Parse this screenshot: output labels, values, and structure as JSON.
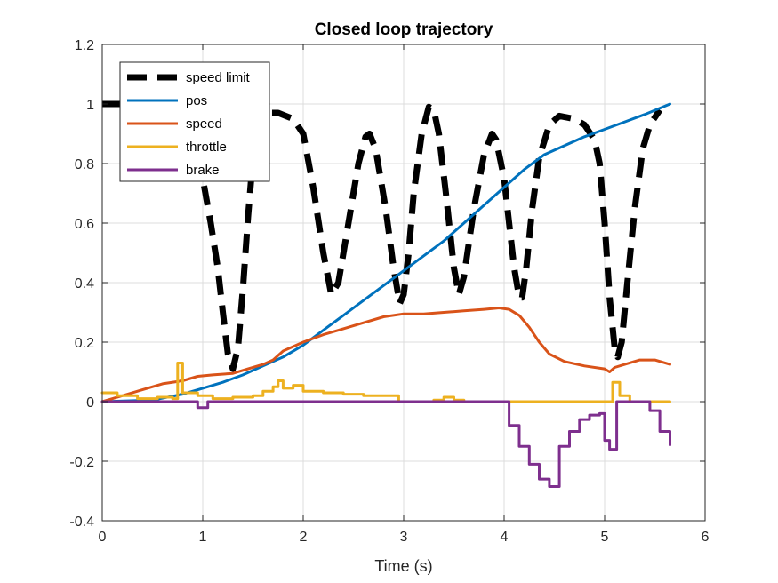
{
  "chart_data": {
    "type": "line",
    "title": "Closed loop trajectory",
    "xlabel": "Time (s)",
    "ylabel": "",
    "xlim": [
      0,
      6
    ],
    "ylim": [
      -0.4,
      1.2
    ],
    "xticks": [
      0,
      1,
      2,
      3,
      4,
      5,
      6
    ],
    "yticks": [
      -0.4,
      -0.2,
      0,
      0.2,
      0.4,
      0.6,
      0.8,
      1,
      1.2
    ],
    "grid": true,
    "legend_position": "top-left",
    "series": [
      {
        "name": "speed limit",
        "color": "#000000",
        "style": "dashed",
        "step": false,
        "points": [
          [
            0.0,
            1.0
          ],
          [
            0.2,
            1.0
          ],
          [
            0.45,
            0.99
          ],
          [
            0.65,
            0.97
          ],
          [
            0.8,
            0.93
          ],
          [
            0.9,
            0.88
          ],
          [
            1.0,
            0.75
          ],
          [
            1.08,
            0.6
          ],
          [
            1.15,
            0.45
          ],
          [
            1.2,
            0.3
          ],
          [
            1.25,
            0.16
          ],
          [
            1.3,
            0.11
          ],
          [
            1.35,
            0.18
          ],
          [
            1.4,
            0.38
          ],
          [
            1.45,
            0.62
          ],
          [
            1.5,
            0.82
          ],
          [
            1.55,
            0.93
          ],
          [
            1.6,
            0.97
          ],
          [
            1.75,
            0.97
          ],
          [
            1.9,
            0.95
          ],
          [
            2.0,
            0.9
          ],
          [
            2.1,
            0.72
          ],
          [
            2.2,
            0.5
          ],
          [
            2.28,
            0.36
          ],
          [
            2.35,
            0.4
          ],
          [
            2.45,
            0.6
          ],
          [
            2.55,
            0.8
          ],
          [
            2.62,
            0.89
          ],
          [
            2.66,
            0.9
          ],
          [
            2.72,
            0.85
          ],
          [
            2.82,
            0.65
          ],
          [
            2.9,
            0.45
          ],
          [
            2.96,
            0.33
          ],
          [
            3.0,
            0.36
          ],
          [
            3.05,
            0.5
          ],
          [
            3.1,
            0.7
          ],
          [
            3.18,
            0.9
          ],
          [
            3.25,
            0.99
          ],
          [
            3.3,
            0.98
          ],
          [
            3.35,
            0.9
          ],
          [
            3.42,
            0.7
          ],
          [
            3.5,
            0.45
          ],
          [
            3.55,
            0.36
          ],
          [
            3.6,
            0.42
          ],
          [
            3.7,
            0.65
          ],
          [
            3.8,
            0.83
          ],
          [
            3.88,
            0.9
          ],
          [
            3.92,
            0.88
          ],
          [
            4.0,
            0.75
          ],
          [
            4.05,
            0.6
          ],
          [
            4.1,
            0.45
          ],
          [
            4.15,
            0.35
          ],
          [
            4.18,
            0.35
          ],
          [
            4.22,
            0.45
          ],
          [
            4.28,
            0.65
          ],
          [
            4.35,
            0.82
          ],
          [
            4.45,
            0.93
          ],
          [
            4.55,
            0.96
          ],
          [
            4.7,
            0.95
          ],
          [
            4.8,
            0.93
          ],
          [
            4.9,
            0.88
          ],
          [
            4.95,
            0.8
          ],
          [
            5.0,
            0.6
          ],
          [
            5.05,
            0.35
          ],
          [
            5.1,
            0.18
          ],
          [
            5.13,
            0.15
          ],
          [
            5.17,
            0.2
          ],
          [
            5.22,
            0.38
          ],
          [
            5.3,
            0.65
          ],
          [
            5.38,
            0.85
          ],
          [
            5.45,
            0.93
          ],
          [
            5.55,
            0.98
          ]
        ]
      },
      {
        "name": "pos",
        "color": "#0072BD",
        "style": "solid",
        "step": false,
        "points": [
          [
            0.0,
            0.0
          ],
          [
            0.5,
            0.005
          ],
          [
            0.8,
            0.025
          ],
          [
            1.0,
            0.045
          ],
          [
            1.2,
            0.065
          ],
          [
            1.4,
            0.09
          ],
          [
            1.6,
            0.12
          ],
          [
            1.8,
            0.15
          ],
          [
            2.0,
            0.19
          ],
          [
            2.2,
            0.24
          ],
          [
            2.4,
            0.29
          ],
          [
            2.6,
            0.34
          ],
          [
            2.8,
            0.39
          ],
          [
            3.0,
            0.44
          ],
          [
            3.2,
            0.49
          ],
          [
            3.4,
            0.54
          ],
          [
            3.6,
            0.6
          ],
          [
            3.8,
            0.66
          ],
          [
            4.0,
            0.72
          ],
          [
            4.2,
            0.78
          ],
          [
            4.4,
            0.83
          ],
          [
            4.6,
            0.86
          ],
          [
            4.8,
            0.89
          ],
          [
            5.0,
            0.915
          ],
          [
            5.2,
            0.94
          ],
          [
            5.4,
            0.965
          ],
          [
            5.65,
            1.0
          ]
        ]
      },
      {
        "name": "speed",
        "color": "#D95319",
        "style": "solid",
        "step": false,
        "points": [
          [
            0.0,
            0.0
          ],
          [
            0.2,
            0.02
          ],
          [
            0.4,
            0.04
          ],
          [
            0.6,
            0.06
          ],
          [
            0.8,
            0.07
          ],
          [
            0.95,
            0.085
          ],
          [
            1.1,
            0.09
          ],
          [
            1.3,
            0.095
          ],
          [
            1.45,
            0.11
          ],
          [
            1.6,
            0.125
          ],
          [
            1.7,
            0.14
          ],
          [
            1.8,
            0.17
          ],
          [
            1.9,
            0.185
          ],
          [
            2.0,
            0.2
          ],
          [
            2.2,
            0.225
          ],
          [
            2.4,
            0.245
          ],
          [
            2.6,
            0.265
          ],
          [
            2.8,
            0.285
          ],
          [
            3.0,
            0.295
          ],
          [
            3.2,
            0.295
          ],
          [
            3.4,
            0.3
          ],
          [
            3.6,
            0.305
          ],
          [
            3.8,
            0.31
          ],
          [
            3.95,
            0.315
          ],
          [
            4.05,
            0.31
          ],
          [
            4.15,
            0.29
          ],
          [
            4.25,
            0.25
          ],
          [
            4.35,
            0.2
          ],
          [
            4.45,
            0.16
          ],
          [
            4.6,
            0.135
          ],
          [
            4.8,
            0.12
          ],
          [
            5.0,
            0.11
          ],
          [
            5.05,
            0.1
          ],
          [
            5.1,
            0.115
          ],
          [
            5.2,
            0.125
          ],
          [
            5.35,
            0.14
          ],
          [
            5.5,
            0.14
          ],
          [
            5.65,
            0.125
          ]
        ]
      },
      {
        "name": "throttle",
        "color": "#EDB120",
        "style": "solid",
        "step": true,
        "points": [
          [
            0.0,
            0.03
          ],
          [
            0.15,
            0.02
          ],
          [
            0.35,
            0.01
          ],
          [
            0.55,
            0.015
          ],
          [
            0.7,
            0.01
          ],
          [
            0.75,
            0.13
          ],
          [
            0.8,
            0.03
          ],
          [
            0.95,
            0.02
          ],
          [
            1.1,
            0.01
          ],
          [
            1.3,
            0.015
          ],
          [
            1.5,
            0.02
          ],
          [
            1.6,
            0.035
          ],
          [
            1.7,
            0.05
          ],
          [
            1.75,
            0.07
          ],
          [
            1.8,
            0.045
          ],
          [
            1.9,
            0.055
          ],
          [
            2.0,
            0.035
          ],
          [
            2.2,
            0.03
          ],
          [
            2.4,
            0.025
          ],
          [
            2.6,
            0.02
          ],
          [
            2.8,
            0.02
          ],
          [
            2.95,
            0.0
          ],
          [
            3.3,
            0.005
          ],
          [
            3.4,
            0.015
          ],
          [
            3.5,
            0.005
          ],
          [
            3.6,
            0.0
          ],
          [
            5.08,
            0.065
          ],
          [
            5.15,
            0.02
          ],
          [
            5.25,
            0.0
          ],
          [
            5.65,
            0.0
          ]
        ]
      },
      {
        "name": "brake",
        "color": "#7E2F8E",
        "style": "solid",
        "step": true,
        "points": [
          [
            0.0,
            0.0
          ],
          [
            0.9,
            0.0
          ],
          [
            0.95,
            -0.02
          ],
          [
            1.05,
            0.0
          ],
          [
            3.0,
            0.0
          ],
          [
            3.95,
            0.0
          ],
          [
            4.05,
            -0.08
          ],
          [
            4.15,
            -0.15
          ],
          [
            4.25,
            -0.21
          ],
          [
            4.35,
            -0.26
          ],
          [
            4.45,
            -0.285
          ],
          [
            4.5,
            -0.285
          ],
          [
            4.55,
            -0.15
          ],
          [
            4.65,
            -0.1
          ],
          [
            4.75,
            -0.06
          ],
          [
            4.85,
            -0.045
          ],
          [
            4.95,
            -0.04
          ],
          [
            5.0,
            -0.13
          ],
          [
            5.05,
            -0.16
          ],
          [
            5.1,
            -0.16
          ],
          [
            5.12,
            0.0
          ],
          [
            5.4,
            0.0
          ],
          [
            5.45,
            -0.03
          ],
          [
            5.55,
            -0.1
          ],
          [
            5.65,
            -0.145
          ]
        ]
      }
    ]
  }
}
